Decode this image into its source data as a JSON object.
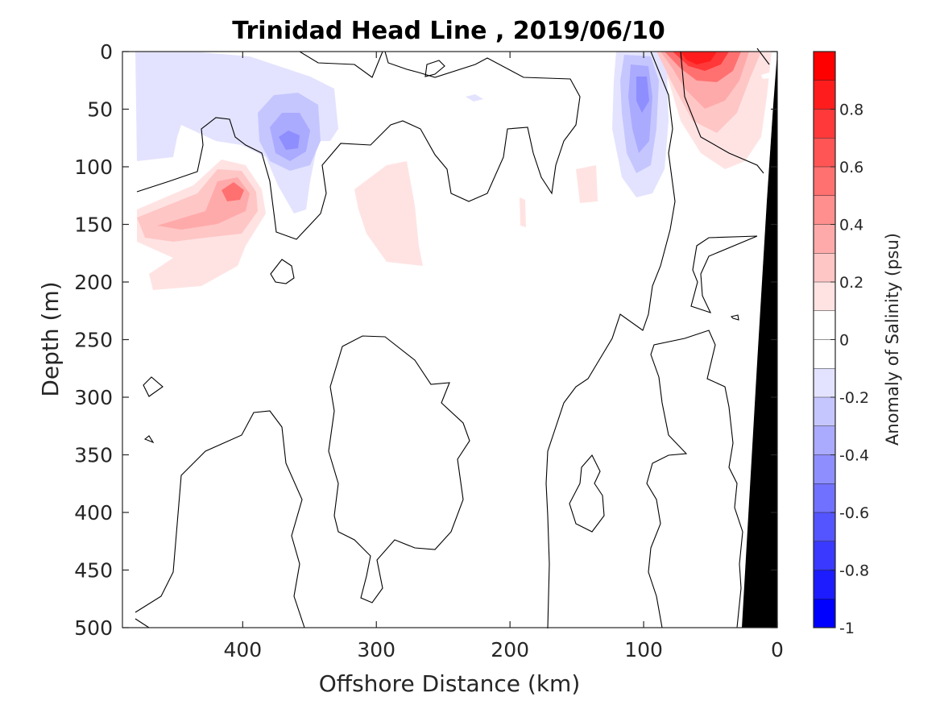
{
  "chart_data": {
    "type": "heatmap",
    "title": "Trinidad Head Line , 2019/06/10",
    "xlabel": "Offshore Distance (km)",
    "ylabel": "Depth (m)",
    "xlim": [
      490,
      0
    ],
    "ylim": [
      0,
      500
    ],
    "x_reversed": true,
    "y_reversed": true,
    "x_ticks": [
      400,
      300,
      200,
      100,
      0
    ],
    "y_ticks": [
      0,
      50,
      100,
      150,
      200,
      250,
      300,
      350,
      400,
      450,
      500
    ],
    "colorbar": {
      "label": "Anomaly of Salinity (psu)",
      "range": [
        -1,
        1
      ],
      "ticks": [
        0.8,
        0.6,
        0.4,
        0.2,
        0,
        -0.2,
        -0.4,
        -0.6,
        -0.8,
        -1
      ],
      "colors": [
        "#ff0000",
        "#ff1c1c",
        "#ff3939",
        "#ff5555",
        "#ff7171",
        "#ff8e8e",
        "#ffaaaa",
        "#ffc6c6",
        "#ffe3e3",
        "#ffffff",
        "#ffffff",
        "#e3e3ff",
        "#c6c6ff",
        "#aaaaff",
        "#8e8eff",
        "#7171ff",
        "#5555ff",
        "#3939ff",
        "#1c1cff",
        "#0000ff"
      ]
    },
    "anomalies": [
      {
        "x": 55,
        "depth": 8,
        "value": 0.9
      },
      {
        "x": 405,
        "depth": 120,
        "value": 0.4
      },
      {
        "x": 440,
        "depth": 160,
        "value": 0.2
      },
      {
        "x": 270,
        "depth": 160,
        "value": 0.1
      },
      {
        "x": 100,
        "depth": 40,
        "value": -0.4
      },
      {
        "x": 368,
        "depth": 78,
        "value": -0.5
      },
      {
        "x": 430,
        "depth": 20,
        "value": -0.1
      }
    ],
    "land_mask": "black wedge near coast, from 0 km at surface to ~25 km at 500 m"
  }
}
